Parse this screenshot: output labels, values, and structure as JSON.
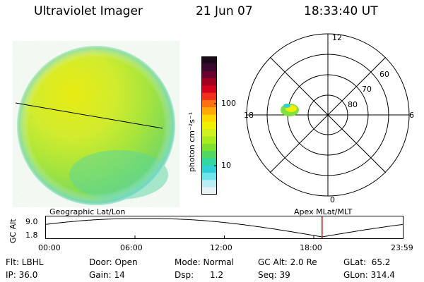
{
  "header": {
    "instrument": "Ultraviolet Imager",
    "date": "21 Jun 07",
    "time": "18:33:40 UT"
  },
  "colorbar": {
    "unit_label": "photon cm⁻²s⁻¹",
    "ticks": [
      "100",
      "10"
    ],
    "colors": [
      "#1c0a1c",
      "#3a0830",
      "#6a0030",
      "#a00020",
      "#d4001c",
      "#f03018",
      "#ff7010",
      "#ffa808",
      "#ffd800",
      "#f0f000",
      "#d0f020",
      "#a8ec20",
      "#80e030",
      "#50d860",
      "#30d8a0",
      "#30d0d8",
      "#70e4ec",
      "#b8eef4",
      "#e6f2f4"
    ]
  },
  "polar_plot": {
    "hour_labels": [
      "12",
      "18",
      "6",
      "0"
    ],
    "lat_labels": [
      "60",
      "70",
      "80"
    ]
  },
  "timeline": {
    "y_axis_label": "GC Alt",
    "y_ticks": [
      "9.0",
      "1.8"
    ],
    "left_label": "Geographic Lat/Lon",
    "right_label": "Apex  MLat/MLT",
    "x_ticks": [
      "00:00",
      "06:00",
      "12:00",
      "18:00",
      "23:59"
    ],
    "marker_time": "18:33:40"
  },
  "info": {
    "row1": [
      "Flt: LBHL",
      "Door: Open",
      "Mode: Normal",
      "GC Alt: 2.0 Re",
      "GLat:  65.2"
    ],
    "row2": [
      "IP: 36.0",
      "Gain: 14",
      "Dsp:      1.2",
      "Seq: 39",
      "GLon: 314.4"
    ]
  },
  "colors": {
    "marker": "#e00000",
    "line": "#000000"
  }
}
